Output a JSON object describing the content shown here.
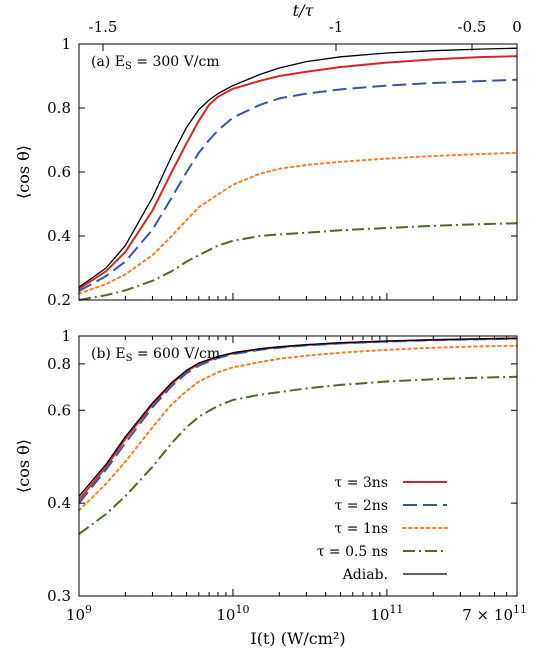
{
  "chart_data": [
    {
      "type": "line",
      "panel_label": "(a) E",
      "panel_label_sub": "S",
      "panel_label_rest": " = 300 V/cm",
      "ylabel": "⟨cos θ⟩",
      "x_scale": "log",
      "xlim": [
        1000000000.0,
        700000000000.0
      ],
      "ylim": [
        0.2,
        1.0
      ],
      "yticks": [
        "0.2",
        "0.4",
        "0.6",
        "0.8",
        "1"
      ],
      "top_axis": {
        "label": "t/τ",
        "ticks": [
          {
            "label": "-1.5",
            "t_over_tau": -1.5
          },
          {
            "label": "-1",
            "t_over_tau": -1.0
          },
          {
            "label": "-0.5",
            "t_over_tau": -0.5
          },
          {
            "label": "0",
            "t_over_tau": 0.0
          }
        ]
      },
      "series": [
        {
          "name": "τ = 3ns",
          "color": "#d62728",
          "dash": "solid",
          "x": [
            1000000000.0,
            1500000000.0,
            2000000000.0,
            3000000000.0,
            4000000000.0,
            5000000000.0,
            6000000000.0,
            7000000000.0,
            8000000000.0,
            10000000000.0,
            15000000000.0,
            20000000000.0,
            30000000000.0,
            50000000000.0,
            100000000000.0,
            200000000000.0,
            400000000000.0,
            700000000000.0
          ],
          "y": [
            0.235,
            0.29,
            0.35,
            0.48,
            0.6,
            0.69,
            0.76,
            0.81,
            0.835,
            0.86,
            0.885,
            0.9,
            0.913,
            0.928,
            0.942,
            0.952,
            0.959,
            0.962
          ]
        },
        {
          "name": "τ = 2ns",
          "color": "#3a55a8",
          "dash": "long",
          "x": [
            1000000000.0,
            1500000000.0,
            2000000000.0,
            3000000000.0,
            4000000000.0,
            5000000000.0,
            6000000000.0,
            7000000000.0,
            8000000000.0,
            10000000000.0,
            15000000000.0,
            20000000000.0,
            30000000000.0,
            50000000000.0,
            100000000000.0,
            200000000000.0,
            400000000000.0,
            700000000000.0
          ],
          "y": [
            0.228,
            0.275,
            0.32,
            0.42,
            0.52,
            0.6,
            0.66,
            0.7,
            0.73,
            0.77,
            0.81,
            0.83,
            0.845,
            0.858,
            0.87,
            0.878,
            0.884,
            0.888
          ]
        },
        {
          "name": "τ = 1ns",
          "color": "#ff7f2a",
          "dash": "dot",
          "x": [
            1000000000.0,
            1500000000.0,
            2000000000.0,
            3000000000.0,
            4000000000.0,
            5000000000.0,
            6000000000.0,
            8000000000.0,
            10000000000.0,
            15000000000.0,
            20000000000.0,
            30000000000.0,
            50000000000.0,
            100000000000.0,
            200000000000.0,
            400000000000.0,
            700000000000.0
          ],
          "y": [
            0.22,
            0.25,
            0.28,
            0.34,
            0.4,
            0.45,
            0.49,
            0.53,
            0.56,
            0.595,
            0.61,
            0.622,
            0.632,
            0.642,
            0.65,
            0.656,
            0.66
          ]
        },
        {
          "name": "τ = 0.5 ns",
          "color": "#4b6b26",
          "dash": "dashdot",
          "x": [
            1000000000.0,
            1500000000.0,
            2000000000.0,
            3000000000.0,
            4000000000.0,
            5000000000.0,
            6000000000.0,
            8000000000.0,
            10000000000.0,
            15000000000.0,
            20000000000.0,
            30000000000.0,
            50000000000.0,
            100000000000.0,
            200000000000.0,
            400000000000.0,
            700000000000.0
          ],
          "y": [
            0.2,
            0.215,
            0.23,
            0.26,
            0.29,
            0.32,
            0.34,
            0.37,
            0.385,
            0.4,
            0.405,
            0.41,
            0.418,
            0.425,
            0.432,
            0.437,
            0.44
          ]
        },
        {
          "name": "Adiab.",
          "color": "#000000",
          "dash": "solid",
          "x": [
            1000000000.0,
            1500000000.0,
            2000000000.0,
            3000000000.0,
            4000000000.0,
            5000000000.0,
            6000000000.0,
            7000000000.0,
            8000000000.0,
            10000000000.0,
            15000000000.0,
            20000000000.0,
            30000000000.0,
            50000000000.0,
            100000000000.0,
            200000000000.0,
            400000000000.0,
            700000000000.0
          ],
          "y": [
            0.24,
            0.3,
            0.37,
            0.52,
            0.65,
            0.74,
            0.795,
            0.825,
            0.845,
            0.87,
            0.905,
            0.925,
            0.945,
            0.96,
            0.972,
            0.979,
            0.984,
            0.987
          ]
        }
      ]
    },
    {
      "type": "line",
      "panel_label": "(b) E",
      "panel_label_sub": "S",
      "panel_label_rest": " = 600 V/cm",
      "ylabel": "⟨cos θ⟩",
      "xlabel": "I(t) (W/cm²)",
      "x_scale": "log",
      "xlim": [
        1000000000.0,
        700000000000.0
      ],
      "ylim": [
        0.3,
        1.0
      ],
      "y_scale": "reciprocal",
      "yticks": [
        "0.3",
        "0.4",
        "0.6",
        "0.8",
        "1"
      ],
      "xticks": [
        {
          "label": "10",
          "sup": "9",
          "value": 1000000000.0
        },
        {
          "label": "10",
          "sup": "10",
          "value": 10000000000.0
        },
        {
          "label": "10",
          "sup": "11",
          "value": 100000000000.0
        },
        {
          "label": "7 × 10",
          "sup": "11",
          "value": 700000000000.0
        }
      ],
      "series": [
        {
          "name": "τ = 3ns",
          "color": "#d62728",
          "dash": "solid",
          "x": [
            1000000000.0,
            1500000000.0,
            2000000000.0,
            3000000000.0,
            4000000000.0,
            5000000000.0,
            6000000000.0,
            8000000000.0,
            10000000000.0,
            15000000000.0,
            20000000000.0,
            30000000000.0,
            50000000000.0,
            100000000000.0,
            200000000000.0,
            400000000000.0,
            700000000000.0
          ],
          "y": [
            0.405,
            0.46,
            0.52,
            0.62,
            0.7,
            0.76,
            0.8,
            0.84,
            0.865,
            0.895,
            0.91,
            0.925,
            0.94,
            0.955,
            0.966,
            0.974,
            0.979
          ]
        },
        {
          "name": "τ = 2ns",
          "color": "#3a55a8",
          "dash": "long",
          "x": [
            1000000000.0,
            1500000000.0,
            2000000000.0,
            3000000000.0,
            4000000000.0,
            5000000000.0,
            6000000000.0,
            8000000000.0,
            10000000000.0,
            15000000000.0,
            20000000000.0,
            30000000000.0,
            50000000000.0,
            100000000000.0,
            200000000000.0,
            400000000000.0,
            700000000000.0
          ],
          "y": [
            0.4,
            0.455,
            0.51,
            0.61,
            0.69,
            0.75,
            0.79,
            0.835,
            0.86,
            0.89,
            0.905,
            0.922,
            0.938,
            0.953,
            0.964,
            0.972,
            0.978
          ]
        },
        {
          "name": "τ = 1ns",
          "color": "#ff7f2a",
          "dash": "dot",
          "x": [
            1000000000.0,
            1500000000.0,
            2000000000.0,
            3000000000.0,
            4000000000.0,
            5000000000.0,
            6000000000.0,
            8000000000.0,
            10000000000.0,
            15000000000.0,
            20000000000.0,
            30000000000.0,
            50000000000.0,
            100000000000.0,
            200000000000.0,
            400000000000.0,
            700000000000.0
          ],
          "y": [
            0.39,
            0.43,
            0.47,
            0.55,
            0.62,
            0.67,
            0.71,
            0.755,
            0.78,
            0.81,
            0.83,
            0.85,
            0.87,
            0.89,
            0.905,
            0.915,
            0.92
          ]
        },
        {
          "name": "τ = 0.5 ns",
          "color": "#4b6b26",
          "dash": "dashdot",
          "x": [
            1000000000.0,
            1500000000.0,
            2000000000.0,
            3000000000.0,
            4000000000.0,
            5000000000.0,
            6000000000.0,
            8000000000.0,
            10000000000.0,
            15000000000.0,
            20000000000.0,
            30000000000.0,
            50000000000.0,
            100000000000.0,
            200000000000.0,
            400000000000.0,
            700000000000.0
          ],
          "y": [
            0.36,
            0.385,
            0.41,
            0.46,
            0.51,
            0.55,
            0.58,
            0.615,
            0.635,
            0.655,
            0.665,
            0.68,
            0.695,
            0.71,
            0.72,
            0.728,
            0.732
          ]
        },
        {
          "name": "Adiab.",
          "color": "#000000",
          "dash": "solid",
          "x": [
            1000000000.0,
            1500000000.0,
            2000000000.0,
            3000000000.0,
            4000000000.0,
            5000000000.0,
            6000000000.0,
            8000000000.0,
            10000000000.0,
            15000000000.0,
            20000000000.0,
            30000000000.0,
            50000000000.0,
            100000000000.0,
            200000000000.0,
            400000000000.0,
            700000000000.0
          ],
          "y": [
            0.41,
            0.465,
            0.525,
            0.625,
            0.705,
            0.765,
            0.805,
            0.845,
            0.87,
            0.898,
            0.912,
            0.928,
            0.943,
            0.957,
            0.967,
            0.975,
            0.98
          ]
        }
      ],
      "legend": {
        "placement": "lower-right"
      }
    }
  ]
}
